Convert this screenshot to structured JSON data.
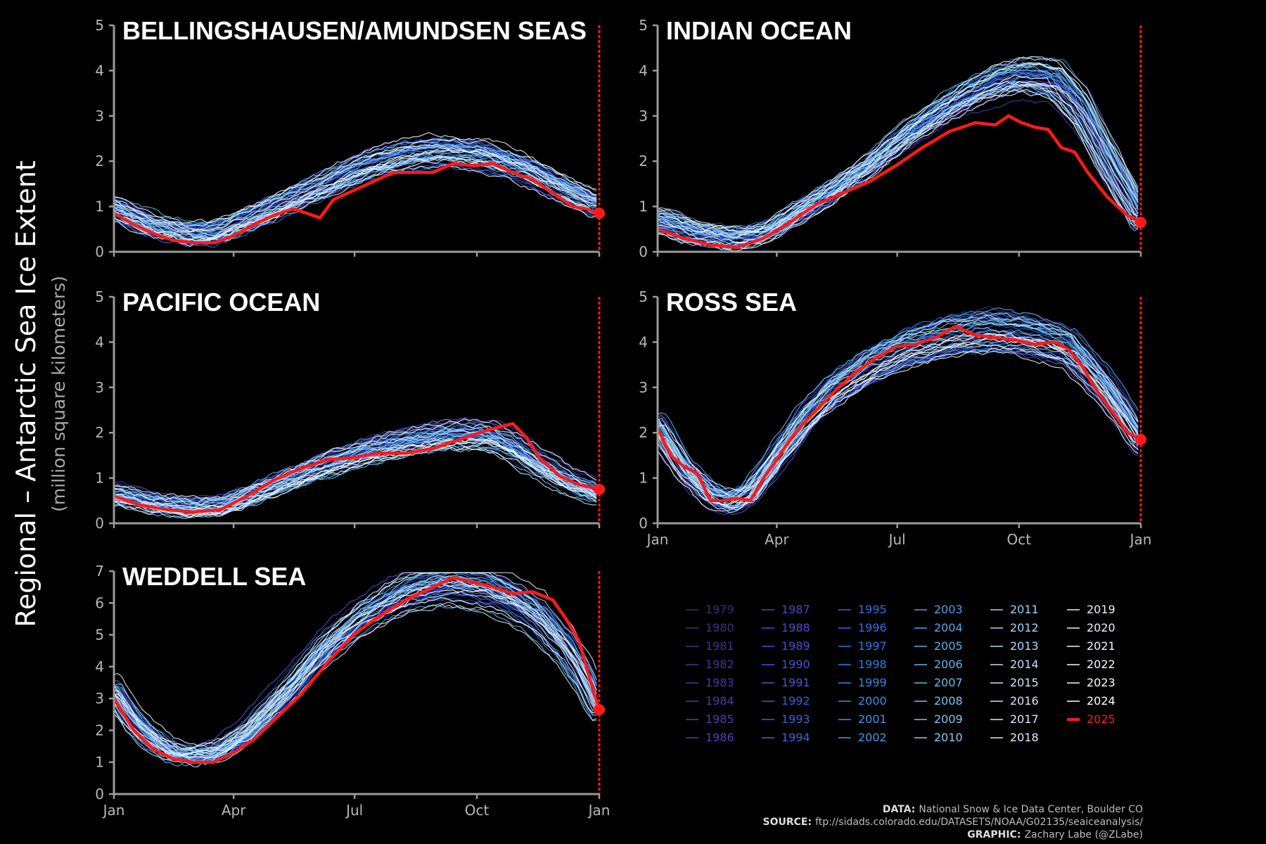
{
  "ylabel_main": "Regional – Antarctic Sea Ice Extent",
  "ylabel_sub": "(million square kilometers)",
  "credits": {
    "data_label": "DATA:",
    "data_text": "National Snow & Ice Data Center, Boulder CO",
    "source_label": "SOURCE:",
    "source_text": "ftp://sidads.colorado.edu/DATASETS/NOAA/G02135/seaiceanalysis/",
    "graphic_label": "GRAPHIC:",
    "graphic_text": "Zachary Labe (@ZLabe)"
  },
  "colors": {
    "current_year": "#ff1a1a",
    "axis": "#9a9a9a",
    "background": "#000000"
  },
  "chart_data": [
    {
      "type": "line",
      "title": "BELLINGSHAUSEN/AMUNDSEN SEAS",
      "ylim": [
        0,
        5
      ],
      "yticks": [
        0,
        1,
        2,
        3,
        4,
        5
      ],
      "x_tick_labels": [],
      "xlim": [
        0,
        365
      ],
      "climatology": {
        "x": [
          0,
          30,
          60,
          80,
          100,
          130,
          160,
          190,
          220,
          250,
          280,
          310,
          340,
          365
        ],
        "mean": [
          1.0,
          0.6,
          0.4,
          0.45,
          0.7,
          1.1,
          1.5,
          1.9,
          2.15,
          2.25,
          2.15,
          1.85,
          1.4,
          1.05
        ],
        "spread": 0.42
      },
      "series": [
        {
          "name": "2025",
          "x": [
            0,
            15,
            30,
            45,
            60,
            75,
            90,
            105,
            120,
            135,
            145,
            155,
            165,
            180,
            195,
            210,
            225,
            240,
            255,
            270,
            285,
            300,
            315,
            330,
            345,
            355,
            365
          ],
          "y": [
            0.85,
            0.6,
            0.4,
            0.25,
            0.2,
            0.2,
            0.35,
            0.6,
            0.8,
            0.95,
            0.85,
            0.75,
            1.15,
            1.35,
            1.55,
            1.75,
            1.75,
            1.75,
            1.95,
            1.9,
            1.95,
            1.75,
            1.6,
            1.3,
            1.0,
            0.95,
            0.85
          ]
        }
      ]
    },
    {
      "type": "line",
      "title": "INDIAN OCEAN",
      "ylim": [
        0,
        5
      ],
      "yticks": [
        0,
        1,
        2,
        3,
        4,
        5
      ],
      "x_tick_labels": [],
      "xlim": [
        0,
        365
      ],
      "climatology": {
        "x": [
          0,
          30,
          60,
          80,
          100,
          130,
          160,
          190,
          220,
          250,
          275,
          300,
          320,
          340,
          365
        ],
        "mean": [
          0.7,
          0.4,
          0.3,
          0.4,
          0.75,
          1.3,
          1.9,
          2.6,
          3.2,
          3.65,
          3.85,
          3.75,
          3.1,
          2.0,
          0.75
        ],
        "spread": 0.4
      },
      "series": [
        {
          "name": "2025",
          "x": [
            0,
            20,
            40,
            60,
            80,
            100,
            120,
            140,
            160,
            180,
            200,
            220,
            240,
            255,
            265,
            275,
            285,
            295,
            305,
            315,
            325,
            340,
            355,
            365
          ],
          "y": [
            0.5,
            0.3,
            0.15,
            0.1,
            0.3,
            0.65,
            1.05,
            1.3,
            1.55,
            1.9,
            2.3,
            2.65,
            2.85,
            2.8,
            3.0,
            2.85,
            2.75,
            2.7,
            2.3,
            2.2,
            1.75,
            1.2,
            0.8,
            0.65
          ]
        }
      ]
    },
    {
      "type": "line",
      "title": "PACIFIC OCEAN",
      "ylim": [
        0,
        5
      ],
      "yticks": [
        0,
        1,
        2,
        3,
        4,
        5
      ],
      "x_tick_labels": [],
      "xlim": [
        0,
        365
      ],
      "climatology": {
        "x": [
          0,
          30,
          60,
          80,
          100,
          130,
          160,
          190,
          220,
          250,
          280,
          300,
          320,
          340,
          365
        ],
        "mean": [
          0.65,
          0.45,
          0.35,
          0.38,
          0.6,
          0.95,
          1.3,
          1.6,
          1.8,
          1.95,
          1.95,
          1.7,
          1.3,
          0.95,
          0.65
        ],
        "spread": 0.3
      },
      "series": [
        {
          "name": "2025",
          "x": [
            0,
            20,
            40,
            60,
            80,
            100,
            120,
            140,
            160,
            180,
            200,
            220,
            240,
            260,
            280,
            300,
            310,
            320,
            335,
            350,
            365
          ],
          "y": [
            0.6,
            0.4,
            0.3,
            0.25,
            0.3,
            0.6,
            0.95,
            1.2,
            1.4,
            1.45,
            1.55,
            1.55,
            1.65,
            1.85,
            2.05,
            2.2,
            1.9,
            1.45,
            1.05,
            0.85,
            0.75
          ]
        }
      ]
    },
    {
      "type": "line",
      "title": "ROSS SEA",
      "ylim": [
        0,
        5
      ],
      "yticks": [
        0,
        1,
        2,
        3,
        4,
        5
      ],
      "x_tick_labels": [
        "Jan",
        "Apr",
        "Jul",
        "Oct",
        "Jan"
      ],
      "xlim": [
        0,
        365
      ],
      "climatology": {
        "x": [
          0,
          20,
          40,
          55,
          70,
          90,
          110,
          130,
          160,
          190,
          220,
          250,
          280,
          310,
          335,
          350,
          365
        ],
        "mean": [
          2.1,
          1.2,
          0.6,
          0.45,
          0.7,
          1.5,
          2.3,
          2.9,
          3.5,
          3.9,
          4.15,
          4.25,
          4.15,
          3.9,
          3.1,
          2.5,
          1.8
        ],
        "spread": 0.42
      },
      "series": [
        {
          "name": "2025",
          "x": [
            0,
            10,
            20,
            30,
            40,
            50,
            60,
            70,
            80,
            90,
            100,
            110,
            120,
            135,
            150,
            165,
            180,
            195,
            210,
            225,
            240,
            255,
            270,
            285,
            300,
            310,
            320,
            330,
            345,
            355,
            365
          ],
          "y": [
            2.1,
            1.5,
            1.25,
            1.1,
            0.5,
            0.5,
            0.55,
            0.5,
            1.0,
            1.4,
            1.85,
            2.2,
            2.5,
            2.95,
            3.35,
            3.65,
            3.9,
            3.95,
            4.1,
            4.35,
            4.15,
            4.1,
            4.05,
            3.95,
            4.0,
            3.85,
            3.5,
            3.0,
            2.4,
            2.0,
            1.85
          ]
        }
      ]
    },
    {
      "type": "line",
      "title": "WEDDELL SEA",
      "ylim": [
        0,
        7
      ],
      "yticks": [
        0,
        1,
        2,
        3,
        4,
        5,
        6,
        7
      ],
      "x_tick_labels": [
        "Jan",
        "Apr",
        "Jul",
        "Oct",
        "Jan"
      ],
      "xlim": [
        0,
        365
      ],
      "climatology": {
        "x": [
          0,
          15,
          30,
          45,
          60,
          80,
          100,
          130,
          160,
          190,
          220,
          250,
          280,
          300,
          320,
          340,
          355,
          365
        ],
        "mean": [
          3.2,
          2.3,
          1.7,
          1.3,
          1.2,
          1.35,
          1.9,
          3.2,
          4.6,
          5.6,
          6.3,
          6.6,
          6.45,
          6.1,
          5.55,
          4.6,
          3.6,
          2.7
        ],
        "spread": 0.45
      },
      "series": [
        {
          "name": "2025",
          "x": [
            0,
            15,
            30,
            45,
            60,
            75,
            90,
            105,
            120,
            140,
            160,
            180,
            200,
            220,
            240,
            255,
            270,
            285,
            300,
            315,
            330,
            340,
            350,
            358,
            365
          ],
          "y": [
            3.0,
            2.0,
            1.4,
            1.1,
            1.0,
            1.0,
            1.3,
            1.7,
            2.3,
            3.1,
            4.1,
            5.0,
            5.6,
            6.1,
            6.5,
            6.8,
            6.65,
            6.5,
            6.3,
            6.35,
            6.1,
            5.5,
            4.8,
            3.6,
            2.65
          ]
        }
      ]
    }
  ],
  "legend": {
    "columns": [
      [
        "1979",
        "1980",
        "1981",
        "1982",
        "1983",
        "1984",
        "1985",
        "1986"
      ],
      [
        "1987",
        "1988",
        "1989",
        "1990",
        "1991",
        "1992",
        "1993",
        "1994"
      ],
      [
        "1995",
        "1996",
        "1997",
        "1998",
        "1999",
        "2000",
        "2001",
        "2002"
      ],
      [
        "2003",
        "2004",
        "2005",
        "2006",
        "2007",
        "2008",
        "2009",
        "2010"
      ],
      [
        "2011",
        "2012",
        "2013",
        "2014",
        "2015",
        "2016",
        "2017",
        "2018"
      ],
      [
        "2019",
        "2020",
        "2021",
        "2022",
        "2023",
        "2024",
        "2025"
      ]
    ]
  }
}
